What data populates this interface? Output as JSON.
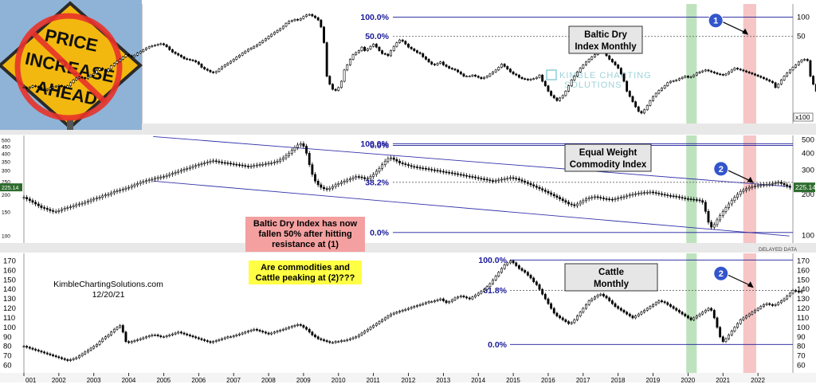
{
  "sign": {
    "line1": "PRICE",
    "line2": "INCREASE",
    "line3": "AHEAD"
  },
  "watermark": "KIMBLE CHARTING SOLUTIONS",
  "delayed": "DELAYED DATA",
  "x100": "x100",
  "source": "KimbleChartingSolutions.com",
  "date": "12/20/21",
  "annotations": {
    "baltic_note": [
      "Baltic Dry Index has now",
      "fallen 50% after hitting",
      "resistance at (1)"
    ],
    "question": [
      "Are commodities and",
      "Cattle peaking at (2)???"
    ]
  },
  "colors": {
    "up": "#ffffff",
    "down": "#000000",
    "fib": "#1a1a9a",
    "channel": "#3333aa",
    "green_band": "#a8d8a8",
    "red_band": "#f4b6b6",
    "marker": "#3355cc",
    "note_bg": "#f4a0a0",
    "question_bg": "#ffff44"
  },
  "chart_data": [
    {
      "type": "candlestick",
      "title": [
        "Baltic Dry",
        "Index Monthly"
      ],
      "scale": "log",
      "yticks": [
        "100",
        "50"
      ],
      "multiplier": "x100",
      "fib_levels": [
        {
          "label": "100.0%",
          "value": 100
        },
        {
          "label": "50.0%",
          "value": 50
        },
        {
          "label": "0.0%",
          "value": 1
        }
      ],
      "marker": {
        "label": "1",
        "x": 2021.75,
        "y": 50
      },
      "start": 2001.0,
      "step_months": 1,
      "closes": [
        8.0,
        7.8,
        8.1,
        8.5,
        8.3,
        8.0,
        7.6,
        7.2,
        7.5,
        7.9,
        8.2,
        8.4,
        8.6,
        8.3,
        8.0,
        8.5,
        9.5,
        10.5,
        11.2,
        11.6,
        11.4,
        11.0,
        11.8,
        12.5,
        13.2,
        14.8,
        16.0,
        15.2,
        14.2,
        15.5,
        17.5,
        19.0,
        20.5,
        22.0,
        24.0,
        26.0,
        25.0,
        24.2,
        25.5,
        27.5,
        29.0,
        31.0,
        33.0,
        34.5,
        35.8,
        36.5,
        37.5,
        38.5,
        37.0,
        34.5,
        31.0,
        28.5,
        27.0,
        25.5,
        24.0,
        22.5,
        22.0,
        21.5,
        21.0,
        20.0,
        18.5,
        16.5,
        15.5,
        14.8,
        14.0,
        13.6,
        14.2,
        15.5,
        16.8,
        18.0,
        19.2,
        20.5,
        22.0,
        23.8,
        25.5,
        27.5,
        29.5,
        31.5,
        33.0,
        35.0,
        37.0,
        40.0,
        43.0,
        46.0,
        50.0,
        54.0,
        58.0,
        62.0,
        66.0,
        72.0,
        80.0,
        86.0,
        88.0,
        92.0,
        90.0,
        95.0,
        102.0,
        108.0,
        110.0,
        104.0,
        98.0,
        90.0,
        70.0,
        40.0,
        12.0,
        9.0,
        7.5,
        7.2,
        8.0,
        10.0,
        15.0,
        18.0,
        22.0,
        26.0,
        28.0,
        30.0,
        34.0,
        30.0,
        32.0,
        35.0,
        38.0,
        34.0,
        30.0,
        27.0,
        26.5,
        25.0,
        30.0,
        35.0,
        40.0,
        44.0,
        42.0,
        38.0,
        34.0,
        32.0,
        30.0,
        28.0,
        27.0,
        24.0,
        22.0,
        20.0,
        18.5,
        18.0,
        19.0,
        20.0,
        18.0,
        17.0,
        16.0,
        15.5,
        15.0,
        14.0,
        13.0,
        12.0,
        12.0,
        12.0,
        12.5,
        12.0,
        11.5,
        11.0,
        11.5,
        12.0,
        13.0,
        14.0,
        15.0,
        16.5,
        18.5,
        17.0,
        15.5,
        14.0,
        13.0,
        12.5,
        11.5,
        11.0,
        10.8,
        10.5,
        10.8,
        11.0,
        11.5,
        12.5,
        10.0,
        8.5,
        7.0,
        6.0,
        5.5,
        5.0,
        5.5,
        6.0,
        7.0,
        8.5,
        10.5,
        12.0,
        14.0,
        16.0,
        18.0,
        20.0,
        22.0,
        24.0,
        26.0,
        28.0,
        30.0,
        28.0,
        25.0,
        22.0,
        20.0,
        18.0,
        16.0,
        13.0,
        10.0,
        7.0,
        5.8,
        4.8,
        4.0,
        3.4,
        3.2,
        3.6,
        4.2,
        5.0,
        5.8,
        6.5,
        7.2,
        7.8,
        8.5,
        9.5,
        10.0,
        10.2,
        10.5,
        11.0,
        11.5,
        12.0,
        11.5,
        11.8,
        12.5,
        13.5,
        14.0,
        14.5,
        15.0,
        14.5,
        14.0,
        13.5,
        13.0,
        12.8,
        12.5,
        13.0,
        14.0,
        15.0,
        16.0,
        15.5,
        15.0,
        14.5,
        14.0,
        13.5,
        13.0,
        12.5,
        12.0,
        11.5,
        11.0,
        10.5,
        10.0,
        9.5,
        8.0,
        9.0,
        10.5,
        12.0,
        13.5,
        15.0,
        16.5,
        18.0,
        20.0,
        21.5,
        22.0,
        21.0,
        12.0,
        9.0,
        7.0,
        5.5,
        4.8,
        5.5,
        7.5,
        10.0,
        13.0,
        15.0,
        16.0,
        15.0,
        14.5,
        15.5,
        17.0,
        19.0,
        20.0,
        22.0,
        26.0,
        32.0,
        38.0,
        42.0,
        45.0,
        48.0,
        52.0,
        50.0,
        38.0,
        31.0,
        29.0,
        27.0
      ]
    },
    {
      "type": "candlestick",
      "title": [
        "Equal Weight",
        "Commodity Index"
      ],
      "scale": "log",
      "yticks": [
        "500",
        "450",
        "400",
        "350",
        "300",
        "250",
        "200",
        "150",
        "100"
      ],
      "right_ticks": [
        "500",
        "400",
        "300",
        "200",
        "100"
      ],
      "last_value": "225.14",
      "fib_levels": [
        {
          "label": "100.0%",
          "value": 470
        },
        {
          "label": "38.2%",
          "value": 245
        },
        {
          "label": "0.0%",
          "value": 105
        }
      ],
      "channel": [
        {
          "x0": 2004.7,
          "y0": 530,
          "x1": 2022.9,
          "y1": 228
        },
        {
          "x0": 2004.7,
          "y0": 250,
          "x1": 2022.9,
          "y1": 99
        }
      ],
      "marker": {
        "label": "2",
        "x": 2021.9,
        "y": 235
      },
      "start": 2001.0,
      "step_months": 1,
      "closes": [
        190.0,
        185.0,
        180.0,
        175.0,
        170.0,
        165.0,
        160.0,
        158.0,
        155.0,
        152.0,
        150.0,
        150.0,
        152.0,
        155.0,
        158.0,
        160.0,
        162.0,
        165.0,
        168.0,
        170.0,
        172.0,
        175.0,
        178.0,
        182.0,
        185.0,
        188.0,
        190.0,
        195.0,
        198.0,
        200.0,
        205.0,
        210.0,
        212.0,
        215.0,
        218.0,
        222.0,
        225.0,
        230.0,
        235.0,
        240.0,
        245.0,
        248.0,
        252.0,
        255.0,
        258.0,
        262.0,
        265.0,
        268.0,
        270.0,
        275.0,
        280.0,
        285.0,
        290.0,
        295.0,
        300.0,
        305.0,
        310.0,
        315.0,
        320.0,
        325.0,
        330.0,
        335.0,
        340.0,
        345.0,
        350.0,
        352.0,
        348.0,
        345.0,
        342.0,
        340.0,
        338.0,
        335.0,
        332.0,
        330.0,
        328.0,
        325.0,
        322.0,
        320.0,
        322.0,
        325.0,
        328.0,
        330.0,
        332.0,
        335.0,
        338.0,
        340.0,
        345.0,
        350.0,
        360.0,
        370.0,
        385.0,
        400.0,
        420.0,
        440.0,
        460.0,
        470.0,
        450.0,
        400.0,
        330.0,
        280.0,
        250.0,
        235.0,
        225.0,
        220.0,
        218.0,
        222.0,
        228.0,
        235.0,
        240.0,
        245.0,
        250.0,
        255.0,
        260.0,
        265.0,
        270.0,
        268.0,
        265.0,
        260.0,
        262.0,
        270.0,
        280.0,
        295.0,
        310.0,
        330.0,
        350.0,
        365.0,
        370.0,
        360.0,
        350.0,
        340.0,
        335.0,
        330.0,
        325.0,
        320.0,
        318.0,
        315.0,
        312.0,
        310.0,
        308.0,
        305.0,
        302.0,
        300.0,
        298.0,
        295.0,
        292.0,
        290.0,
        288.0,
        285.0,
        283.0,
        280.0,
        278.0,
        275.0,
        272.0,
        270.0,
        268.0,
        265.0,
        262.0,
        260.0,
        258.0,
        255.0,
        252.0,
        250.0,
        252.0,
        255.0,
        258.0,
        260.0,
        262.0,
        265.0,
        262.0,
        260.0,
        255.0,
        250.0,
        245.0,
        240.0,
        235.0,
        230.0,
        225.0,
        220.0,
        215.0,
        210.0,
        205.0,
        200.0,
        195.0,
        190.0,
        185.0,
        180.0,
        175.0,
        170.0,
        168.0,
        165.0,
        170.0,
        175.0,
        180.0,
        185.0,
        188.0,
        190.0,
        192.0,
        190.0,
        188.0,
        186.0,
        185.0,
        184.0,
        183.0,
        185.0,
        188.0,
        190.0,
        192.0,
        195.0,
        198.0,
        200.0,
        202.0,
        204.0,
        205.0,
        206.0,
        207.0,
        208.0,
        206.0,
        204.0,
        202.0,
        200.0,
        198.0,
        196.0,
        195.0,
        194.0,
        192.0,
        190.0,
        188.0,
        186.0,
        185.0,
        184.0,
        183.0,
        182.0,
        180.0,
        175.0,
        150.0,
        125.0,
        115.0,
        120.0,
        130.0,
        140.0,
        150.0,
        160.0,
        170.0,
        180.0,
        190.0,
        200.0,
        210.0,
        215.0,
        220.0,
        225.0,
        228.0,
        230.0,
        232.0,
        234.0,
        235.0,
        236.0,
        238.0,
        240.0,
        242.0,
        245.0,
        240.0,
        235.0,
        230.0,
        225.0
      ]
    },
    {
      "type": "candlestick",
      "title": [
        "Cattle",
        "Monthly"
      ],
      "scale": "linear",
      "ylim": [
        50,
        180
      ],
      "yticks": [
        "170",
        "160",
        "150",
        "140",
        "130",
        "120",
        "110",
        "100",
        "90",
        "80",
        "70",
        "60"
      ],
      "fib_levels": [
        {
          "label": "100.0%",
          "value": 171
        },
        {
          "label": "61.8%",
          "value": 139
        },
        {
          "label": "0.0%",
          "value": 82
        }
      ],
      "marker": {
        "label": "2",
        "x": 2021.9,
        "y": 140
      },
      "xticks": [
        "001",
        "2002",
        "2003",
        "2004",
        "2005",
        "2006",
        "2007",
        "2008",
        "2009",
        "2010",
        "2011",
        "2012",
        "2013",
        "2014",
        "2015",
        "2016",
        "2017",
        "2018",
        "2019",
        "2020",
        "2021",
        "2022"
      ],
      "start": 2001.0,
      "step_months": 1,
      "closes": [
        80.0,
        79.0,
        78.0,
        77.0,
        76.0,
        75.0,
        74.0,
        73.0,
        72.0,
        71.0,
        70.0,
        69.0,
        68.0,
        67.0,
        66.0,
        65.0,
        66.0,
        67.0,
        68.0,
        70.0,
        72.0,
        74.0,
        76.0,
        78.0,
        80.0,
        82.0,
        85.0,
        88.0,
        90.0,
        92.0,
        95.0,
        98.0,
        100.0,
        102.0,
        95.0,
        85.0,
        84.0,
        85.0,
        86.0,
        87.0,
        88.0,
        89.0,
        90.0,
        91.0,
        92.0,
        92.0,
        91.0,
        90.0,
        90.0,
        91.0,
        92.0,
        93.0,
        94.0,
        95.0,
        94.0,
        93.0,
        92.0,
        91.0,
        90.0,
        89.0,
        88.0,
        87.0,
        86.0,
        85.0,
        84.0,
        85.0,
        86.0,
        87.0,
        88.0,
        89.0,
        90.0,
        90.0,
        91.0,
        92.0,
        93.0,
        94.0,
        95.0,
        96.0,
        97.0,
        98.0,
        97.0,
        96.0,
        95.0,
        94.0,
        93.0,
        94.0,
        95.0,
        96.0,
        97.0,
        98.0,
        99.0,
        100.0,
        101.0,
        102.0,
        103.0,
        102.0,
        100.0,
        98.0,
        95.0,
        92.0,
        90.0,
        88.0,
        87.0,
        86.0,
        85.0,
        84.0,
        84.0,
        85.0,
        85.0,
        86.0,
        86.0,
        87.0,
        88.0,
        89.0,
        90.0,
        92.0,
        94.0,
        96.0,
        98.0,
        100.0,
        102.0,
        104.0,
        106.0,
        108.0,
        110.0,
        112.0,
        114.0,
        115.0,
        116.0,
        117.0,
        118.0,
        119.0,
        120.0,
        121.0,
        122.0,
        123.0,
        124.0,
        125.0,
        126.0,
        127.0,
        127.0,
        128.0,
        129.0,
        130.0,
        128.0,
        126.0,
        127.0,
        129.0,
        131.0,
        132.0,
        133.0,
        132.0,
        131.0,
        130.0,
        132.0,
        134.0,
        136.0,
        138.0,
        140.0,
        143.0,
        146.0,
        150.0,
        154.0,
        158.0,
        162.0,
        166.0,
        168.0,
        170.0,
        168.0,
        165.0,
        162.0,
        160.0,
        158.0,
        155.0,
        152.0,
        148.0,
        145.0,
        140.0,
        135.0,
        130.0,
        125.0,
        120.0,
        115.0,
        112.0,
        110.0,
        108.0,
        106.0,
        104.0,
        105.0,
        108.0,
        112.0,
        116.0,
        120.0,
        124.0,
        128.0,
        130.0,
        132.0,
        134.0,
        135.0,
        133.0,
        131.0,
        128.0,
        125.0,
        122.0,
        120.0,
        118.0,
        116.0,
        114.0,
        112.0,
        110.0,
        112.0,
        114.0,
        116.0,
        118.0,
        120.0,
        122.0,
        124.0,
        126.0,
        128.0,
        127.0,
        126.0,
        124.0,
        122.0,
        120.0,
        118.0,
        116.0,
        114.0,
        112.0,
        110.0,
        108.0,
        110.0,
        112.0,
        114.0,
        116.0,
        118.0,
        120.0,
        118.0,
        110.0,
        100.0,
        90.0,
        85.0,
        88.0,
        92.0,
        96.0,
        100.0,
        104.0,
        108.0,
        110.0,
        112.0,
        114.0,
        116.0,
        118.0,
        120.0,
        122.0,
        124.0,
        125.0,
        124.0,
        123.0,
        124.0,
        126.0,
        128.0,
        130.0,
        133.0,
        136.0,
        139.0,
        138.0,
        137.0,
        138.0
      ]
    }
  ]
}
